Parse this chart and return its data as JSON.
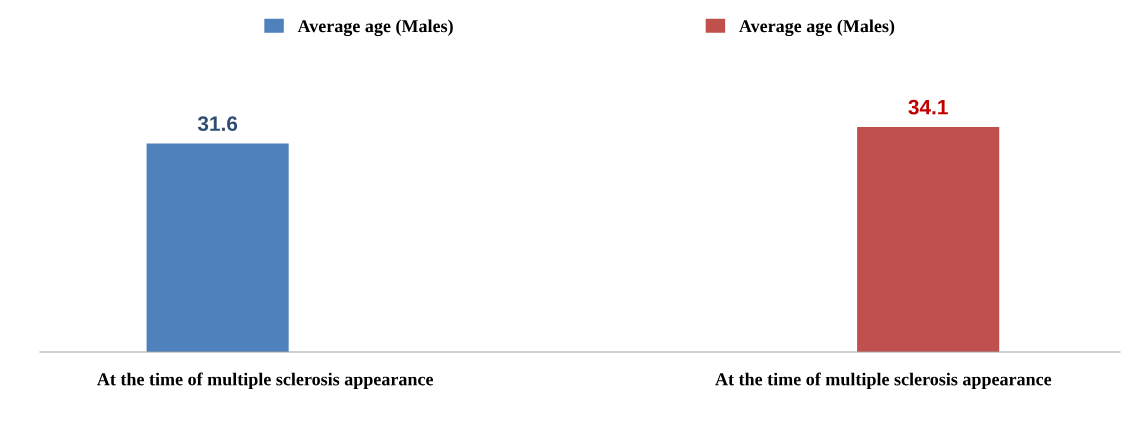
{
  "chart_data": {
    "type": "bar",
    "categories": [
      "At the time of multiple sclerosis appearance",
      "At the time of multiple sclerosis appearance"
    ],
    "series": [
      {
        "name": "Average age (Males)",
        "color": "#4f81bd",
        "values": [
          31.6,
          null
        ]
      },
      {
        "name": "Average age (Males)",
        "color": "#c0504d",
        "values": [
          null,
          34.1
        ]
      }
    ],
    "data_labels": true,
    "legend": "top"
  }
}
